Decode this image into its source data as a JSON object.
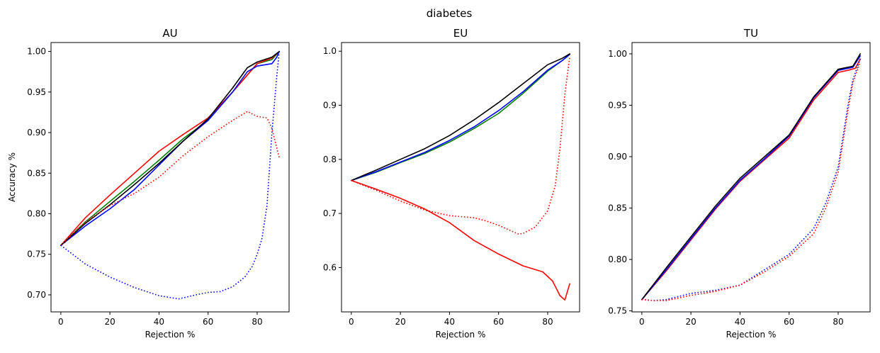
{
  "figure": {
    "title": "diabetes"
  },
  "chart_data": [
    {
      "type": "line",
      "title": "AU",
      "xlabel": "Rejection %",
      "ylabel": "Accuracy %",
      "xlim": [
        -4,
        93
      ],
      "ylim": [
        0.679,
        1.011
      ],
      "xticks": [
        0,
        20,
        40,
        60,
        80
      ],
      "yticks": [
        0.7,
        0.75,
        0.8,
        0.85,
        0.9,
        0.95,
        1.0
      ],
      "ytick_labels": [
        "0.70",
        "0.75",
        "0.80",
        "0.85",
        "0.90",
        "0.95",
        "1.00"
      ],
      "grid": false,
      "series": [
        {
          "color": "#008000",
          "style": "solid",
          "x": [
            0,
            10,
            20,
            30,
            40,
            50,
            60,
            70,
            80,
            86,
            89
          ],
          "y": [
            0.761,
            0.79,
            0.815,
            0.84,
            0.866,
            0.893,
            0.915,
            0.95,
            0.985,
            0.99,
            1.0
          ]
        },
        {
          "color": "#ff0000",
          "style": "solid",
          "x": [
            0,
            10,
            20,
            30,
            40,
            50,
            60,
            70,
            80,
            86,
            89
          ],
          "y": [
            0.761,
            0.795,
            0.823,
            0.85,
            0.877,
            0.898,
            0.918,
            0.95,
            0.985,
            0.992,
            1.0
          ]
        },
        {
          "color": "#0000ff",
          "style": "solid",
          "x": [
            0,
            10,
            20,
            30,
            40,
            50,
            60,
            70,
            76,
            80,
            86,
            88,
            89
          ],
          "y": [
            0.761,
            0.785,
            0.806,
            0.83,
            0.86,
            0.89,
            0.915,
            0.95,
            0.975,
            0.982,
            0.985,
            0.993,
            1.0
          ]
        },
        {
          "color": "#000000",
          "style": "solid",
          "x": [
            0,
            10,
            20,
            30,
            40,
            50,
            60,
            70,
            76,
            80,
            86,
            89
          ],
          "y": [
            0.761,
            0.788,
            0.811,
            0.836,
            0.862,
            0.89,
            0.917,
            0.955,
            0.98,
            0.987,
            0.993,
            1.0
          ]
        },
        {
          "color": "#ff0000",
          "style": "dotted",
          "x": [
            0,
            10,
            20,
            30,
            40,
            50,
            60,
            70,
            76,
            80,
            84,
            86,
            89
          ],
          "y": [
            0.761,
            0.79,
            0.81,
            0.825,
            0.845,
            0.872,
            0.895,
            0.915,
            0.926,
            0.92,
            0.918,
            0.905,
            0.869
          ]
        },
        {
          "color": "#0000ff",
          "style": "dotted",
          "x": [
            0,
            10,
            20,
            30,
            40,
            48,
            55,
            60,
            65,
            70,
            75,
            78,
            80,
            82,
            84,
            86,
            88,
            89
          ],
          "y": [
            0.761,
            0.738,
            0.722,
            0.709,
            0.699,
            0.695,
            0.7,
            0.703,
            0.704,
            0.71,
            0.722,
            0.735,
            0.75,
            0.77,
            0.81,
            0.9,
            0.97,
            1.0
          ]
        }
      ]
    },
    {
      "type": "line",
      "title": "EU",
      "xlabel": "Rejection %",
      "ylabel": "",
      "xlim": [
        -4,
        93
      ],
      "ylim": [
        0.518,
        1.016
      ],
      "xticks": [
        0,
        20,
        40,
        60,
        80
      ],
      "yticks": [
        0.6,
        0.7,
        0.8,
        0.9,
        1.0
      ],
      "ytick_labels": [
        "0.6",
        "0.7",
        "0.8",
        "0.9",
        "1.0"
      ],
      "grid": false,
      "series": [
        {
          "color": "#008000",
          "style": "solid",
          "x": [
            0,
            10,
            20,
            30,
            40,
            50,
            60,
            70,
            80,
            86,
            89
          ],
          "y": [
            0.761,
            0.776,
            0.794,
            0.811,
            0.832,
            0.857,
            0.885,
            0.922,
            0.963,
            0.983,
            0.994
          ]
        },
        {
          "color": "#0000ff",
          "style": "solid",
          "x": [
            0,
            10,
            20,
            30,
            40,
            50,
            60,
            70,
            80,
            86,
            89
          ],
          "y": [
            0.761,
            0.777,
            0.795,
            0.813,
            0.835,
            0.86,
            0.89,
            0.925,
            0.965,
            0.983,
            0.994
          ]
        },
        {
          "color": "#000000",
          "style": "solid",
          "x": [
            0,
            10,
            20,
            30,
            40,
            50,
            60,
            70,
            80,
            86,
            89
          ],
          "y": [
            0.761,
            0.78,
            0.8,
            0.82,
            0.844,
            0.873,
            0.905,
            0.94,
            0.975,
            0.987,
            0.995
          ]
        },
        {
          "color": "#ff0000",
          "style": "solid",
          "x": [
            0,
            10,
            20,
            30,
            40,
            50,
            60,
            70,
            78,
            82,
            85,
            87,
            89
          ],
          "y": [
            0.761,
            0.745,
            0.728,
            0.708,
            0.683,
            0.65,
            0.625,
            0.603,
            0.592,
            0.575,
            0.548,
            0.54,
            0.57
          ]
        },
        {
          "color": "#ff0000",
          "style": "dotted",
          "x": [
            0,
            10,
            20,
            30,
            40,
            50,
            55,
            60,
            65,
            68,
            70,
            75,
            80,
            83,
            85,
            87,
            89
          ],
          "y": [
            0.761,
            0.743,
            0.723,
            0.706,
            0.696,
            0.692,
            0.686,
            0.678,
            0.668,
            0.662,
            0.663,
            0.675,
            0.705,
            0.75,
            0.82,
            0.92,
            0.99
          ]
        }
      ]
    },
    {
      "type": "line",
      "title": "TU",
      "xlabel": "Rejection %",
      "ylabel": "",
      "xlim": [
        -4,
        93
      ],
      "ylim": [
        0.749,
        1.011
      ],
      "xticks": [
        0,
        20,
        40,
        60,
        80
      ],
      "yticks": [
        0.75,
        0.8,
        0.85,
        0.9,
        0.95,
        1.0
      ],
      "ytick_labels": [
        "0.75",
        "0.80",
        "0.85",
        "0.90",
        "0.95",
        "1.00"
      ],
      "grid": false,
      "series": [
        {
          "color": "#008000",
          "style": "solid",
          "x": [
            0,
            10,
            20,
            30,
            40,
            50,
            60,
            70,
            80,
            86,
            89
          ],
          "y": [
            0.761,
            0.79,
            0.82,
            0.85,
            0.877,
            0.898,
            0.92,
            0.958,
            0.984,
            0.987,
            1.0
          ]
        },
        {
          "color": "#ff0000",
          "style": "solid",
          "x": [
            0,
            10,
            20,
            30,
            40,
            50,
            60,
            70,
            80,
            84,
            87,
            89
          ],
          "y": [
            0.761,
            0.789,
            0.819,
            0.849,
            0.876,
            0.897,
            0.918,
            0.955,
            0.982,
            0.984,
            0.986,
            0.995
          ]
        },
        {
          "color": "#0000ff",
          "style": "solid",
          "x": [
            0,
            10,
            20,
            30,
            40,
            50,
            60,
            70,
            80,
            86,
            89
          ],
          "y": [
            0.761,
            0.79,
            0.82,
            0.85,
            0.877,
            0.898,
            0.92,
            0.957,
            0.984,
            0.987,
            0.998
          ]
        },
        {
          "color": "#000000",
          "style": "solid",
          "x": [
            0,
            10,
            20,
            30,
            40,
            50,
            60,
            70,
            80,
            86,
            89
          ],
          "y": [
            0.761,
            0.792,
            0.822,
            0.852,
            0.879,
            0.9,
            0.921,
            0.958,
            0.985,
            0.988,
            1.0
          ]
        },
        {
          "color": "#0000ff",
          "style": "dotted",
          "x": [
            0,
            5,
            10,
            20,
            30,
            40,
            50,
            60,
            70,
            75,
            80,
            84,
            86,
            89
          ],
          "y": [
            0.761,
            0.76,
            0.761,
            0.767,
            0.77,
            0.775,
            0.79,
            0.805,
            0.83,
            0.855,
            0.89,
            0.95,
            0.975,
            0.995
          ]
        },
        {
          "color": "#ff0000",
          "style": "dotted",
          "x": [
            0,
            5,
            10,
            20,
            30,
            40,
            50,
            60,
            70,
            75,
            80,
            84,
            86,
            89
          ],
          "y": [
            0.761,
            0.76,
            0.76,
            0.765,
            0.769,
            0.775,
            0.788,
            0.803,
            0.825,
            0.85,
            0.885,
            0.945,
            0.972,
            0.992
          ]
        }
      ]
    }
  ]
}
